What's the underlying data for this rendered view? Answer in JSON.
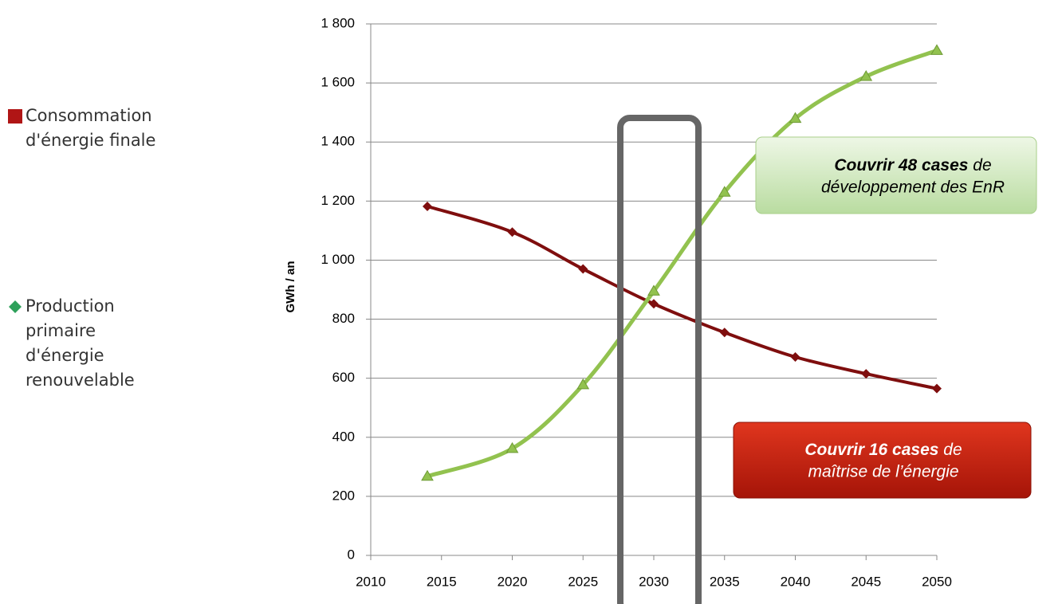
{
  "chart_data": {
    "type": "line",
    "y_label": "GWh / an",
    "x": [
      2014,
      2020,
      2025,
      2030,
      2035,
      2040,
      2045,
      2050
    ],
    "series": [
      {
        "name": "Consommation d'énergie finale",
        "color": "#7f0e0e",
        "marker": "diamond",
        "legend_color": "#b01515",
        "values": [
          1182,
          1095,
          970,
          852,
          755,
          672,
          615,
          565
        ]
      },
      {
        "name": "Production primaire d'énergie renouvelable",
        "color": "#92c24f",
        "marker": "triangle",
        "legend_color": "#2ea05a",
        "values": [
          268,
          362,
          578,
          895,
          1230,
          1480,
          1622,
          1710
        ]
      }
    ],
    "xlim": [
      2010,
      2050
    ],
    "xticks": [
      2010,
      2015,
      2020,
      2025,
      2030,
      2035,
      2040,
      2045,
      2050
    ],
    "ylim": [
      0,
      1800
    ],
    "yticks": [
      0,
      200,
      400,
      600,
      800,
      {
        "value": 1000,
        "label": "1 000"
      },
      {
        "value": 1200,
        "label": "1 200"
      },
      {
        "value": 1400,
        "label": "1 400"
      },
      {
        "value": 1600,
        "label": "1 600"
      },
      {
        "value": 1800,
        "label": "1 800"
      }
    ],
    "grid": true,
    "annotations": [
      {
        "bold": "Couvrir 48 cases",
        "rest": " de",
        "line2": "développement des EnR"
      },
      {
        "bold": "Couvrir 16 cases",
        "rest": " de",
        "line2": "maîtrise de l’énergie"
      }
    ]
  }
}
